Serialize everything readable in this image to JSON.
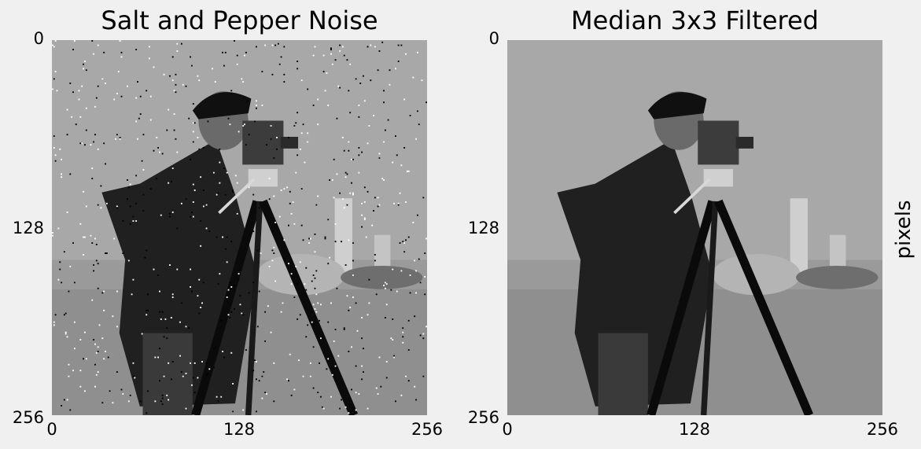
{
  "chart_data": [
    {
      "type": "heatmap",
      "title": "Salt and Pepper Noise",
      "image": "cameraman grayscale photo with salt and pepper noise",
      "xlim": [
        0,
        256
      ],
      "ylim": [
        256,
        0
      ],
      "xticks": [
        "0",
        "128",
        "256"
      ],
      "yticks": [
        "0",
        "128",
        "256"
      ],
      "noise_density": 0.1,
      "grid": false
    },
    {
      "type": "heatmap",
      "title": "Median 3x3 Filtered",
      "image": "cameraman grayscale photo after 3x3 median filter",
      "xlim": [
        0,
        256
      ],
      "ylim": [
        256,
        0
      ],
      "xticks": [
        "0",
        "128",
        "256"
      ],
      "yticks": [
        "0",
        "128",
        "256"
      ],
      "grid": false
    }
  ],
  "side_label": "pixels"
}
